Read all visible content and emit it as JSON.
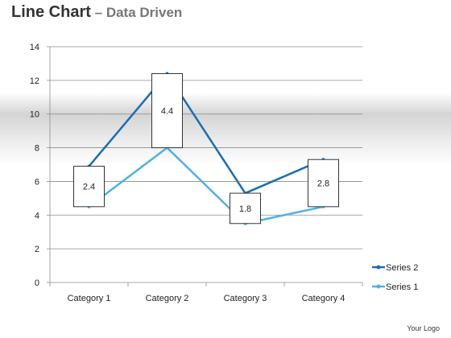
{
  "title": {
    "main": "Line Chart",
    "dash": " – ",
    "sub": "Data Driven"
  },
  "footer": {
    "logo": "Your Logo"
  },
  "chart_data": {
    "type": "line",
    "title": "Line Chart – Data Driven",
    "xlabel": "",
    "ylabel": "",
    "categories": [
      "Category 1",
      "Category 2",
      "Category 3",
      "Category 4"
    ],
    "ylim": [
      0,
      14
    ],
    "yticks": [
      0,
      2,
      4,
      6,
      8,
      10,
      12,
      14
    ],
    "grid": true,
    "legend": "right",
    "series": [
      {
        "name": "Series 2",
        "color": "#1a6eb4",
        "values": [
          6.9,
          12.4,
          5.3,
          7.3
        ]
      },
      {
        "name": "Series 1",
        "color": "#4db0ea",
        "values": [
          4.5,
          8.0,
          3.5,
          4.5
        ]
      }
    ],
    "boxes": [
      {
        "label": "2.4",
        "low": 4.5,
        "high": 6.9
      },
      {
        "label": "4.4",
        "low": 8.0,
        "high": 12.4
      },
      {
        "label": "1.8",
        "low": 3.5,
        "high": 5.3
      },
      {
        "label": "2.8",
        "low": 4.5,
        "high": 7.3
      }
    ]
  }
}
